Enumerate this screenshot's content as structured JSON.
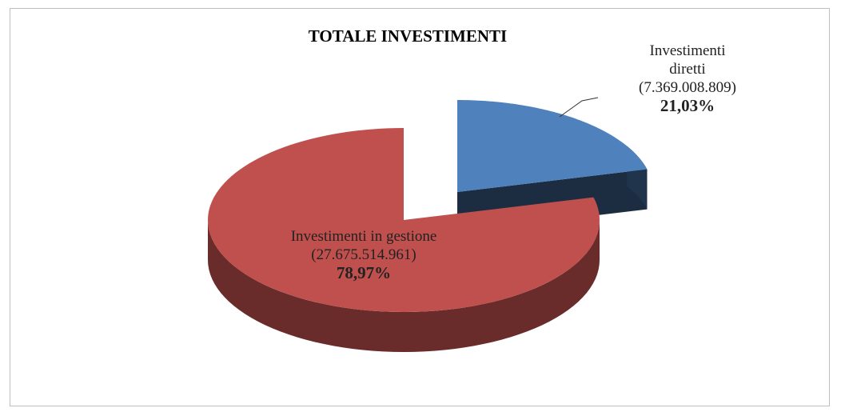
{
  "chart_data": {
    "type": "pie",
    "title": "TOTALE INVESTIMENTI",
    "categories": [
      "Investimenti diretti",
      "Investimenti in gestione"
    ],
    "values": [
      7369008809,
      27675514961
    ],
    "value_labels": [
      "(7.369.008.809)",
      "(27.675.514.961)"
    ],
    "percentages": [
      21.03,
      78.97
    ],
    "percent_labels": [
      "21,03%",
      "78,97%"
    ],
    "colors": [
      "#4f81bd",
      "#c0504d"
    ],
    "exploded": [
      true,
      false
    ]
  }
}
